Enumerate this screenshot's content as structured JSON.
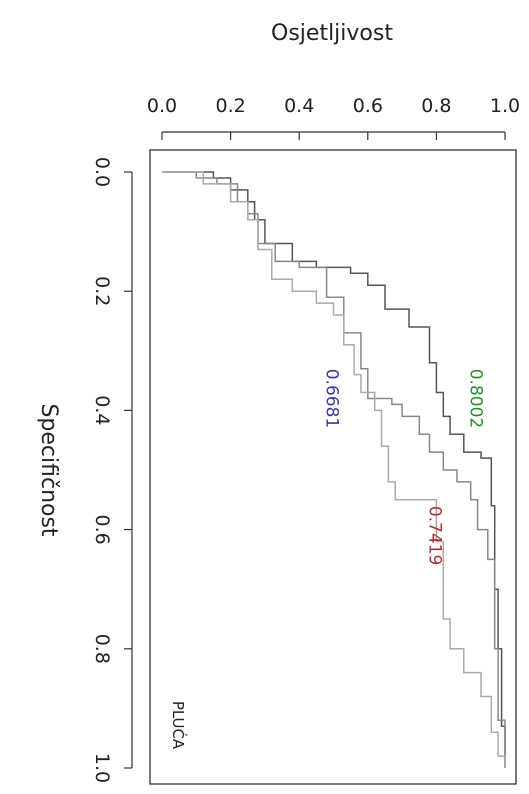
{
  "chart_data": {
    "type": "line",
    "title": "",
    "xlabel": "Osjetljivost",
    "ylabel": "Specifičnost",
    "xlim": [
      0.0,
      1.0
    ],
    "ylim": [
      0.0,
      1.0
    ],
    "x_ticks": [
      "0.0",
      "0.2",
      "0.4",
      "0.6",
      "0.8",
      "1.0"
    ],
    "y_ticks": [
      "0.0",
      "0.2",
      "0.4",
      "0.6",
      "0.8",
      "1.0"
    ],
    "grid": false,
    "panel_label": "PLUĆA",
    "series": [
      {
        "color": "#555555",
        "points": [
          [
            0.0,
            0.0
          ],
          [
            0.15,
            0.0
          ],
          [
            0.15,
            0.01
          ],
          [
            0.2,
            0.01
          ],
          [
            0.2,
            0.03
          ],
          [
            0.25,
            0.03
          ],
          [
            0.25,
            0.05
          ],
          [
            0.27,
            0.05
          ],
          [
            0.27,
            0.08
          ],
          [
            0.3,
            0.08
          ],
          [
            0.3,
            0.12
          ],
          [
            0.38,
            0.12
          ],
          [
            0.38,
            0.15
          ],
          [
            0.45,
            0.15
          ],
          [
            0.45,
            0.16
          ],
          [
            0.55,
            0.16
          ],
          [
            0.55,
            0.17
          ],
          [
            0.6,
            0.17
          ],
          [
            0.6,
            0.19
          ],
          [
            0.65,
            0.19
          ],
          [
            0.65,
            0.23
          ],
          [
            0.72,
            0.23
          ],
          [
            0.72,
            0.26
          ],
          [
            0.78,
            0.26
          ],
          [
            0.78,
            0.32
          ],
          [
            0.8,
            0.32
          ],
          [
            0.8,
            0.37
          ],
          [
            0.82,
            0.37
          ],
          [
            0.82,
            0.41
          ],
          [
            0.84,
            0.41
          ],
          [
            0.84,
            0.44
          ],
          [
            0.88,
            0.44
          ],
          [
            0.88,
            0.47
          ],
          [
            0.93,
            0.47
          ],
          [
            0.93,
            0.48
          ],
          [
            0.96,
            0.48
          ],
          [
            0.96,
            0.56
          ],
          [
            0.97,
            0.56
          ],
          [
            0.97,
            0.7
          ],
          [
            0.98,
            0.7
          ],
          [
            0.98,
            0.8
          ],
          [
            0.99,
            0.8
          ],
          [
            0.99,
            0.93
          ],
          [
            1.0,
            0.93
          ],
          [
            1.0,
            1.0
          ]
        ]
      },
      {
        "color": "#888888",
        "points": [
          [
            0.0,
            0.0
          ],
          [
            0.1,
            0.0
          ],
          [
            0.1,
            0.01
          ],
          [
            0.16,
            0.01
          ],
          [
            0.16,
            0.02
          ],
          [
            0.22,
            0.02
          ],
          [
            0.22,
            0.05
          ],
          [
            0.25,
            0.05
          ],
          [
            0.25,
            0.07
          ],
          [
            0.28,
            0.07
          ],
          [
            0.28,
            0.12
          ],
          [
            0.33,
            0.12
          ],
          [
            0.33,
            0.15
          ],
          [
            0.4,
            0.15
          ],
          [
            0.4,
            0.16
          ],
          [
            0.48,
            0.16
          ],
          [
            0.48,
            0.21
          ],
          [
            0.53,
            0.21
          ],
          [
            0.53,
            0.27
          ],
          [
            0.58,
            0.27
          ],
          [
            0.58,
            0.33
          ],
          [
            0.6,
            0.33
          ],
          [
            0.6,
            0.38
          ],
          [
            0.67,
            0.38
          ],
          [
            0.67,
            0.39
          ],
          [
            0.7,
            0.39
          ],
          [
            0.7,
            0.41
          ],
          [
            0.75,
            0.41
          ],
          [
            0.75,
            0.44
          ],
          [
            0.78,
            0.44
          ],
          [
            0.78,
            0.47
          ],
          [
            0.82,
            0.47
          ],
          [
            0.82,
            0.5
          ],
          [
            0.86,
            0.5
          ],
          [
            0.86,
            0.52
          ],
          [
            0.9,
            0.52
          ],
          [
            0.9,
            0.55
          ],
          [
            0.92,
            0.55
          ],
          [
            0.92,
            0.6
          ],
          [
            0.95,
            0.6
          ],
          [
            0.95,
            0.65
          ],
          [
            0.97,
            0.65
          ],
          [
            0.97,
            0.8
          ],
          [
            0.98,
            0.8
          ],
          [
            0.98,
            0.92
          ],
          [
            1.0,
            0.92
          ],
          [
            1.0,
            1.0
          ]
        ]
      },
      {
        "color": "#aaaaaa",
        "points": [
          [
            0.0,
            0.0
          ],
          [
            0.12,
            0.0
          ],
          [
            0.12,
            0.02
          ],
          [
            0.2,
            0.02
          ],
          [
            0.2,
            0.05
          ],
          [
            0.25,
            0.05
          ],
          [
            0.25,
            0.08
          ],
          [
            0.28,
            0.08
          ],
          [
            0.28,
            0.13
          ],
          [
            0.32,
            0.13
          ],
          [
            0.32,
            0.18
          ],
          [
            0.38,
            0.18
          ],
          [
            0.38,
            0.2
          ],
          [
            0.45,
            0.2
          ],
          [
            0.45,
            0.22
          ],
          [
            0.5,
            0.22
          ],
          [
            0.5,
            0.24
          ],
          [
            0.53,
            0.24
          ],
          [
            0.53,
            0.29
          ],
          [
            0.56,
            0.29
          ],
          [
            0.56,
            0.34
          ],
          [
            0.58,
            0.34
          ],
          [
            0.58,
            0.37
          ],
          [
            0.62,
            0.37
          ],
          [
            0.62,
            0.4
          ],
          [
            0.64,
            0.4
          ],
          [
            0.64,
            0.46
          ],
          [
            0.66,
            0.46
          ],
          [
            0.66,
            0.52
          ],
          [
            0.68,
            0.52
          ],
          [
            0.68,
            0.55
          ],
          [
            0.8,
            0.55
          ],
          [
            0.8,
            0.62
          ],
          [
            0.82,
            0.62
          ],
          [
            0.82,
            0.75
          ],
          [
            0.84,
            0.75
          ],
          [
            0.84,
            0.8
          ],
          [
            0.88,
            0.8
          ],
          [
            0.88,
            0.84
          ],
          [
            0.93,
            0.84
          ],
          [
            0.93,
            0.88
          ],
          [
            0.96,
            0.88
          ],
          [
            0.96,
            0.94
          ],
          [
            0.98,
            0.94
          ],
          [
            0.98,
            0.98
          ],
          [
            1.0,
            0.98
          ],
          [
            1.0,
            1.0
          ]
        ]
      }
    ],
    "annotations": [
      {
        "text": "0.8002",
        "color": "#2e8b2e",
        "x": 0.9,
        "y": 0.38
      },
      {
        "text": "0.6681",
        "color": "#3a3a9a",
        "x": 0.48,
        "y": 0.38
      },
      {
        "text": "0.7419",
        "color": "#b03030",
        "x": 0.78,
        "y": 0.61
      }
    ]
  }
}
